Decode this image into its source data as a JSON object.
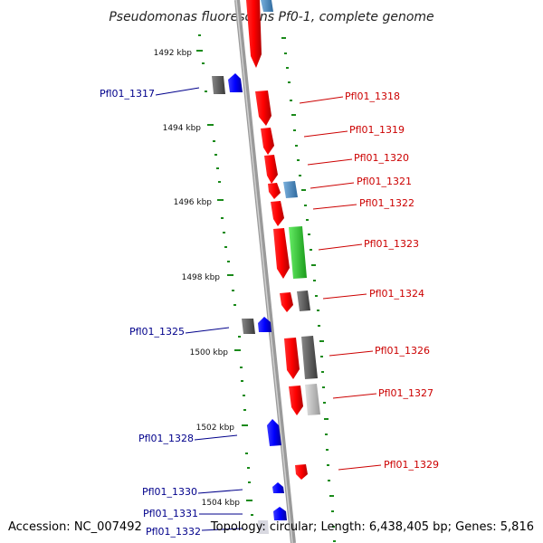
{
  "title": "Pseudomonas fluorescens Pf0-1, complete genome",
  "footer": {
    "accession": "Accession: NC_007492",
    "summary": "Topology: circular; Length: 6,438,405 bp; Genes: 5,816"
  },
  "ticks": [
    "1492 kbp",
    "1494 kbp",
    "1496 kbp",
    "1498 kbp",
    "1500 kbp",
    "1502 kbp",
    "1504 kbp"
  ],
  "labels_left": [
    "Pfl01_1317",
    "Pfl01_1325",
    "Pfl01_1328",
    "Pfl01_1330",
    "Pfl01_1331",
    "Pfl01_1332"
  ],
  "labels_right": [
    "Pfl01_1318",
    "Pfl01_1319",
    "Pfl01_1320",
    "Pfl01_1321",
    "Pfl01_1322",
    "Pfl01_1323",
    "Pfl01_1324",
    "Pfl01_1326",
    "Pfl01_1327",
    "Pfl01_1329"
  ],
  "colors": {
    "backbone": "#8a8a8a",
    "forward_gene": "#ee1111",
    "reverse_gene": "#1a1aee",
    "tick_green": "#1a8a1a",
    "left_label": "#00008b",
    "right_label": "#cc0000",
    "steel_blue": "#4a86c0",
    "bright_green": "#33cc33",
    "dark_gray": "#606060",
    "light_gray": "#c0c0c0"
  }
}
